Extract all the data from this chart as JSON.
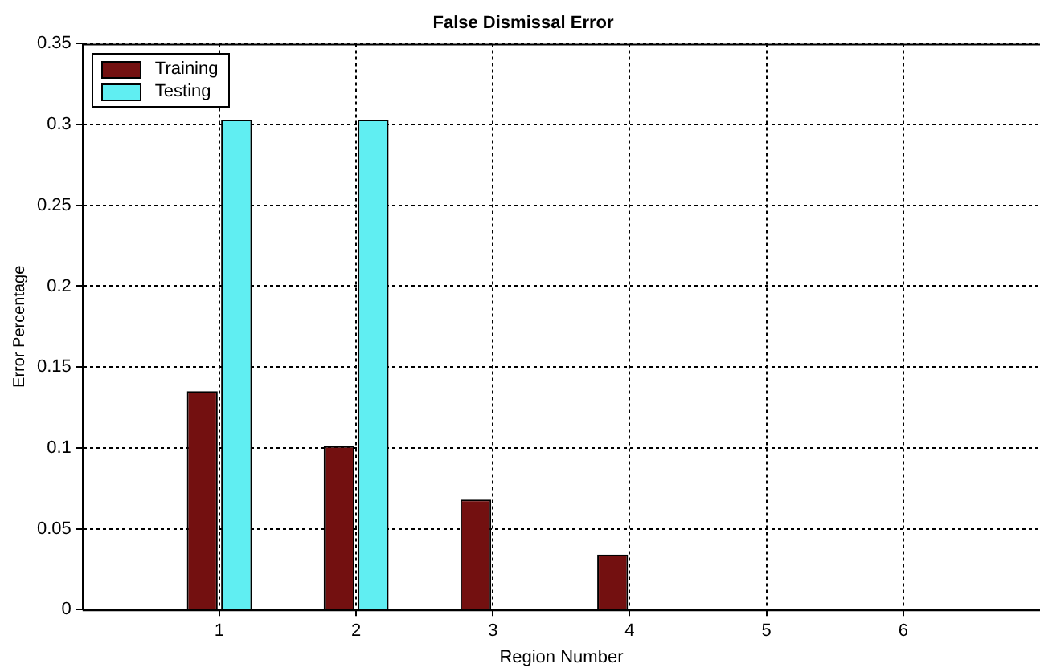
{
  "chart_data": {
    "type": "bar",
    "title": "False Dismissal Error",
    "xlabel": "Region Number",
    "ylabel": "Error Percentage",
    "x": [
      1,
      2,
      3,
      4,
      5,
      6
    ],
    "series": [
      {
        "name": "Training",
        "color": "#731010",
        "values": [
          0.135,
          0.101,
          0.068,
          0.034,
          0,
          0
        ]
      },
      {
        "name": "Testing",
        "color": "#60eef2",
        "values": [
          0.303,
          0.303,
          0,
          0,
          0,
          0
        ]
      }
    ],
    "xlim": [
      0,
      7
    ],
    "xticks": [
      1,
      2,
      3,
      4,
      5,
      6
    ],
    "ylim": [
      0,
      0.35
    ],
    "yticks": [
      0,
      0.05,
      0.1,
      0.15,
      0.2,
      0.25,
      0.3,
      0.35
    ],
    "grid": true,
    "legend": "top left"
  }
}
